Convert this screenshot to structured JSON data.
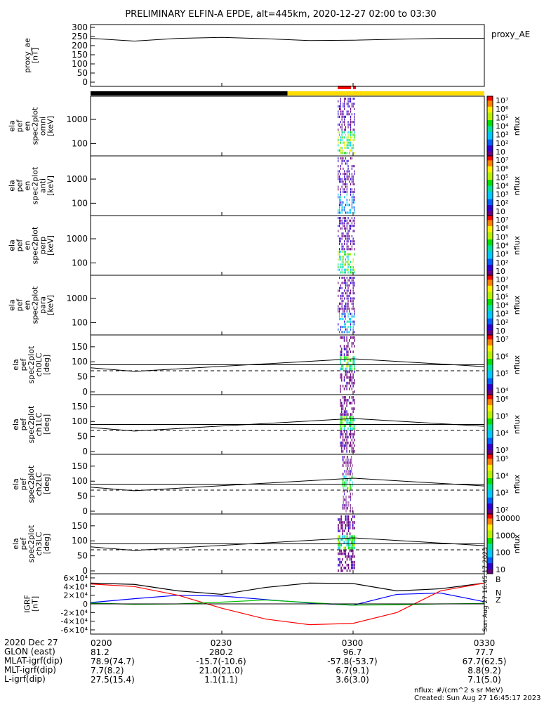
{
  "title": "PRELIMINARY ELFIN-A EPDE, alt=445km, 2020-12-27 02:00 to 03:30",
  "colors": {
    "frame": "#000000",
    "sun_bar_shadow": "#000000",
    "sun_bar_sun": "#ffdd00",
    "sci_zone_marker": "#ff0000",
    "mlat_line": "#000000",
    "lc_line": "#000000",
    "colorbar": [
      "#ffffff",
      "#6a0080",
      "#3000d0",
      "#0060ff",
      "#00c8ff",
      "#00e0a0",
      "#00e000",
      "#b8f000",
      "#ffee00",
      "#ff8000",
      "#ff0000"
    ]
  },
  "annotations": {
    "created": "Created: Sun Aug 27 16:45:17 2023",
    "nflux_units": "nflux: #/(cm^2 s sr MeV)",
    "vertical_stamp": "Sun Aug 27 16:45:17 2023",
    "igrf_components": [
      "B",
      "N",
      "Z"
    ]
  },
  "footer": {
    "rows": [
      {
        "label": "2020 Dec 27",
        "values": [
          "0200",
          "0230",
          "0300",
          "0330"
        ]
      },
      {
        "label": "GLON (east)",
        "values": [
          "81.2",
          "280.2",
          "96.7",
          "77.7"
        ]
      },
      {
        "label": "MLAT-igrf(dip)",
        "values": [
          "78.9(74.7)",
          "-15.7(-10.6)",
          "-57.8(-53.7)",
          "67.7(62.5)"
        ]
      },
      {
        "label": "MLT-igrf(dip)",
        "values": [
          "7.7(8.2)",
          "21.0(21.0)",
          "6.7(9.1)",
          "8.8(9.2)"
        ]
      },
      {
        "label": "L-igrf(dip)",
        "values": [
          "27.5(15.4)",
          "1.1(1.1)",
          "3.6(3.0)",
          "7.1(5.0)"
        ]
      }
    ]
  },
  "chart_data": [
    {
      "type": "line",
      "panel": "proxy_ae",
      "ylabel": [
        "proxy_ae",
        "[nT]"
      ],
      "yticks": [
        "0",
        "50",
        "100",
        "150",
        "200",
        "250",
        "300"
      ],
      "ylim": [
        0,
        300
      ],
      "x": [
        "02:00",
        "02:10",
        "02:20",
        "02:30",
        "02:40",
        "02:50",
        "03:00",
        "03:10",
        "03:20",
        "03:30"
      ],
      "series": [
        {
          "name": "proxy_AE",
          "values": [
            240,
            225,
            240,
            245,
            238,
            228,
            230,
            235,
            240,
            240
          ]
        }
      ]
    },
    {
      "type": "heatmap",
      "panel": "ela_pef_en_spec2plot_omni",
      "ylabel": [
        "ela",
        "pef",
        "en",
        "spec2plot",
        "omni",
        "[keV]"
      ],
      "yticks": [
        "100",
        "1000"
      ],
      "yscale": "log",
      "colorbar_label": "nflux",
      "colorbar_ticks": [
        "10",
        "10²",
        "10³",
        "10⁴",
        "10⁵",
        "10⁶",
        "10⁷"
      ],
      "active_time": [
        "02:56:30",
        "03:00:30"
      ]
    },
    {
      "type": "heatmap",
      "panel": "ela_pef_en_spec2plot_anti",
      "ylabel": [
        "ela",
        "pef",
        "en",
        "spec2plot",
        "anti",
        "[keV]"
      ],
      "yticks": [
        "100",
        "1000"
      ],
      "yscale": "log",
      "colorbar_label": "nflux",
      "colorbar_ticks": [
        "10",
        "10²",
        "10³",
        "10⁴",
        "10⁵",
        "10⁶",
        "10⁷"
      ],
      "active_time": [
        "02:56:30",
        "03:00:30"
      ]
    },
    {
      "type": "heatmap",
      "panel": "ela_pef_en_spec2plot_perp",
      "ylabel": [
        "ela",
        "pef",
        "en",
        "spec2plot",
        "perp",
        "[keV]"
      ],
      "yticks": [
        "100",
        "1000"
      ],
      "yscale": "log",
      "colorbar_label": "nflux",
      "colorbar_ticks": [
        "10",
        "10²",
        "10³",
        "10⁴",
        "10⁵",
        "10⁶",
        "10⁷"
      ],
      "active_time": [
        "02:56:30",
        "03:00:30"
      ]
    },
    {
      "type": "heatmap",
      "panel": "ela_pef_en_spec2plot_para",
      "ylabel": [
        "ela",
        "pef",
        "en",
        "spec2plot",
        "para",
        "[keV]"
      ],
      "yticks": [
        "100",
        "1000"
      ],
      "yscale": "log",
      "colorbar_label": "nflux",
      "colorbar_ticks": [
        "10",
        "10²",
        "10³",
        "10⁴",
        "10⁵",
        "10⁶",
        "10⁷"
      ],
      "active_time": [
        "02:56:30",
        "03:00:30"
      ]
    },
    {
      "type": "heatmap",
      "panel": "ela_pef_spec2plot_ch0LC",
      "ylabel": [
        "ela",
        "pef",
        "spec2plot",
        "ch0LC",
        "[deg]"
      ],
      "yticks": [
        "0",
        "50",
        "100",
        "150"
      ],
      "ylim": [
        0,
        180
      ],
      "colorbar_label": "nflux",
      "colorbar_ticks": [
        "10⁴",
        "10⁵",
        "10⁶",
        "10⁷"
      ],
      "lc_line": {
        "x": [
          "02:00",
          "02:10",
          "03:00",
          "03:30"
        ],
        "values": [
          80,
          68,
          110,
          84
        ]
      },
      "alc_line": {
        "values": [
          70,
          70,
          70,
          70
        ]
      },
      "active_time": [
        "02:57:00",
        "03:00:30"
      ]
    },
    {
      "type": "heatmap",
      "panel": "ela_pef_spec2plot_ch1LC",
      "ylabel": [
        "ela",
        "pef",
        "spec2plot",
        "ch1LC",
        "[deg]"
      ],
      "yticks": [
        "0",
        "50",
        "100",
        "150"
      ],
      "ylim": [
        0,
        180
      ],
      "colorbar_label": "nflux",
      "colorbar_ticks": [
        "10³",
        "10⁴",
        "10⁵",
        "10⁶"
      ],
      "lc_line": {
        "x": [
          "02:00",
          "02:10",
          "03:00",
          "03:30"
        ],
        "values": [
          80,
          68,
          110,
          84
        ]
      },
      "alc_line": {
        "values": [
          70,
          70,
          70,
          70
        ]
      },
      "active_time": [
        "02:57:00",
        "03:00:30"
      ]
    },
    {
      "type": "heatmap",
      "panel": "ela_pef_spec2plot_ch2LC",
      "ylabel": [
        "ela",
        "pef",
        "spec2plot",
        "ch2LC",
        "[deg]"
      ],
      "yticks": [
        "0",
        "50",
        "100",
        "150"
      ],
      "ylim": [
        0,
        180
      ],
      "colorbar_label": "nflux",
      "colorbar_ticks": [
        "10²",
        "10³",
        "10⁴",
        "10⁵"
      ],
      "lc_line": {
        "x": [
          "02:00",
          "02:10",
          "03:00",
          "03:30"
        ],
        "values": [
          80,
          68,
          110,
          84
        ]
      },
      "alc_line": {
        "values": [
          70,
          70,
          70,
          70
        ]
      },
      "active_time": [
        "02:57:30",
        "03:00:00"
      ]
    },
    {
      "type": "heatmap",
      "panel": "ela_pef_spec2plot_ch3LC",
      "ylabel": [
        "ela",
        "pef",
        "spec2plot",
        "ch3LC",
        "[deg]"
      ],
      "yticks": [
        "0",
        "50",
        "100",
        "150"
      ],
      "ylim": [
        0,
        180
      ],
      "colorbar_label": "nflux",
      "colorbar_ticks": [
        "10",
        "100",
        "1000",
        "10000"
      ],
      "lc_line": {
        "x": [
          "02:00",
          "02:10",
          "03:00",
          "03:30"
        ],
        "values": [
          80,
          68,
          110,
          84
        ]
      },
      "alc_line": {
        "values": [
          70,
          70,
          70,
          70
        ]
      },
      "active_time": [
        "02:56:30",
        "03:00:30"
      ]
    },
    {
      "type": "line",
      "panel": "igrf",
      "ylabel": [
        "IGRF",
        "[nT]"
      ],
      "yticks": [
        "-6×10⁴",
        "-4×10⁴",
        "-2×10⁴",
        "0",
        "2×10⁴",
        "4×10⁴",
        "6×10⁴"
      ],
      "ylim": [
        -60000,
        60000
      ],
      "x": [
        "02:00",
        "02:10",
        "02:20",
        "02:30",
        "02:40",
        "02:50",
        "03:00",
        "03:10",
        "03:20",
        "03:30"
      ],
      "series": [
        {
          "name": "B",
          "color": "#000000",
          "values": [
            48000,
            45000,
            30000,
            22000,
            38000,
            48000,
            47000,
            30000,
            35000,
            48000
          ]
        },
        {
          "name": "N",
          "color": "#0000ff",
          "values": [
            3000,
            12000,
            20000,
            18000,
            10000,
            2000,
            -3000,
            22000,
            25000,
            5000
          ]
        },
        {
          "name": "Z",
          "color": "#ff0000",
          "values": [
            46000,
            40000,
            20000,
            -10000,
            -35000,
            -48000,
            -45000,
            -20000,
            30000,
            48000
          ]
        },
        {
          "name": "",
          "color": "#00c000",
          "values": [
            2000,
            -1000,
            0,
            4000,
            9000,
            3000,
            -3000,
            -2000,
            0,
            1000
          ]
        }
      ]
    }
  ]
}
